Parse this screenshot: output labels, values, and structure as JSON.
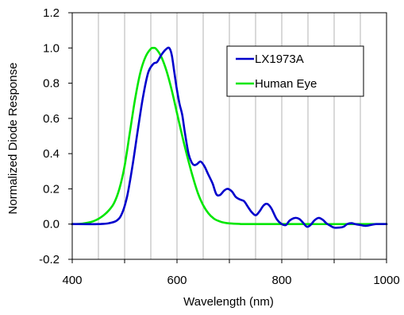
{
  "chart_data": {
    "type": "line",
    "xlabel": "Wavelength (nm)",
    "ylabel": "Normalized Diode Response",
    "xlim": [
      400,
      1000
    ],
    "ylim": [
      -0.2,
      1.2
    ],
    "x_ticks": [
      "400",
      "600",
      "800",
      "1000"
    ],
    "y_ticks": [
      "-0.2",
      "0.0",
      "0.2",
      "0.4",
      "0.6",
      "0.8",
      "1.0",
      "1.2"
    ],
    "grid": "vertical, every 50 nm",
    "legend_position": "top-right",
    "series": [
      {
        "name": "LX1973A",
        "color": "#0000cc",
        "points": [
          [
            400,
            0.0
          ],
          [
            450,
            0.0
          ],
          [
            470,
            0.005
          ],
          [
            485,
            0.02
          ],
          [
            495,
            0.06
          ],
          [
            505,
            0.16
          ],
          [
            515,
            0.33
          ],
          [
            525,
            0.53
          ],
          [
            535,
            0.72
          ],
          [
            545,
            0.86
          ],
          [
            555,
            0.91
          ],
          [
            562,
            0.92
          ],
          [
            570,
            0.96
          ],
          [
            578,
            0.99
          ],
          [
            585,
            1.0
          ],
          [
            590,
            0.96
          ],
          [
            595,
            0.86
          ],
          [
            600,
            0.76
          ],
          [
            605,
            0.68
          ],
          [
            610,
            0.62
          ],
          [
            615,
            0.52
          ],
          [
            622,
            0.4
          ],
          [
            628,
            0.35
          ],
          [
            633,
            0.335
          ],
          [
            638,
            0.34
          ],
          [
            645,
            0.355
          ],
          [
            652,
            0.33
          ],
          [
            660,
            0.28
          ],
          [
            668,
            0.23
          ],
          [
            675,
            0.17
          ],
          [
            682,
            0.165
          ],
          [
            690,
            0.19
          ],
          [
            697,
            0.2
          ],
          [
            705,
            0.185
          ],
          [
            712,
            0.155
          ],
          [
            720,
            0.14
          ],
          [
            728,
            0.13
          ],
          [
            735,
            0.1
          ],
          [
            742,
            0.07
          ],
          [
            750,
            0.05
          ],
          [
            757,
            0.07
          ],
          [
            765,
            0.105
          ],
          [
            772,
            0.115
          ],
          [
            780,
            0.09
          ],
          [
            790,
            0.03
          ],
          [
            800,
            0.0
          ],
          [
            808,
            -0.005
          ],
          [
            815,
            0.02
          ],
          [
            825,
            0.035
          ],
          [
            833,
            0.03
          ],
          [
            840,
            0.01
          ],
          [
            848,
            -0.015
          ],
          [
            855,
            -0.005
          ],
          [
            862,
            0.02
          ],
          [
            870,
            0.035
          ],
          [
            878,
            0.025
          ],
          [
            885,
            0.005
          ],
          [
            893,
            -0.01
          ],
          [
            900,
            -0.02
          ],
          [
            910,
            -0.02
          ],
          [
            918,
            -0.015
          ],
          [
            925,
            0.0
          ],
          [
            933,
            0.005
          ],
          [
            940,
            0.0
          ],
          [
            950,
            -0.005
          ],
          [
            960,
            -0.01
          ],
          [
            970,
            -0.005
          ],
          [
            980,
            0.0
          ],
          [
            1000,
            0.0
          ]
        ]
      },
      {
        "name": "Human Eye",
        "color": "#00e600",
        "points": [
          [
            400,
            0.0
          ],
          [
            410,
            0.0
          ],
          [
            420,
            0.003
          ],
          [
            430,
            0.008
          ],
          [
            440,
            0.016
          ],
          [
            450,
            0.03
          ],
          [
            460,
            0.05
          ],
          [
            470,
            0.078
          ],
          [
            480,
            0.12
          ],
          [
            490,
            0.2
          ],
          [
            500,
            0.33
          ],
          [
            510,
            0.52
          ],
          [
            520,
            0.71
          ],
          [
            530,
            0.86
          ],
          [
            540,
            0.95
          ],
          [
            550,
            0.995
          ],
          [
            555,
            1.0
          ],
          [
            560,
            0.995
          ],
          [
            570,
            0.95
          ],
          [
            580,
            0.87
          ],
          [
            590,
            0.76
          ],
          [
            600,
            0.63
          ],
          [
            610,
            0.5
          ],
          [
            620,
            0.38
          ],
          [
            630,
            0.27
          ],
          [
            640,
            0.175
          ],
          [
            650,
            0.107
          ],
          [
            660,
            0.061
          ],
          [
            670,
            0.032
          ],
          [
            680,
            0.017
          ],
          [
            690,
            0.008
          ],
          [
            700,
            0.004
          ],
          [
            720,
            0.001
          ],
          [
            750,
            0.0
          ],
          [
            1000,
            0.0
          ]
        ]
      }
    ]
  }
}
